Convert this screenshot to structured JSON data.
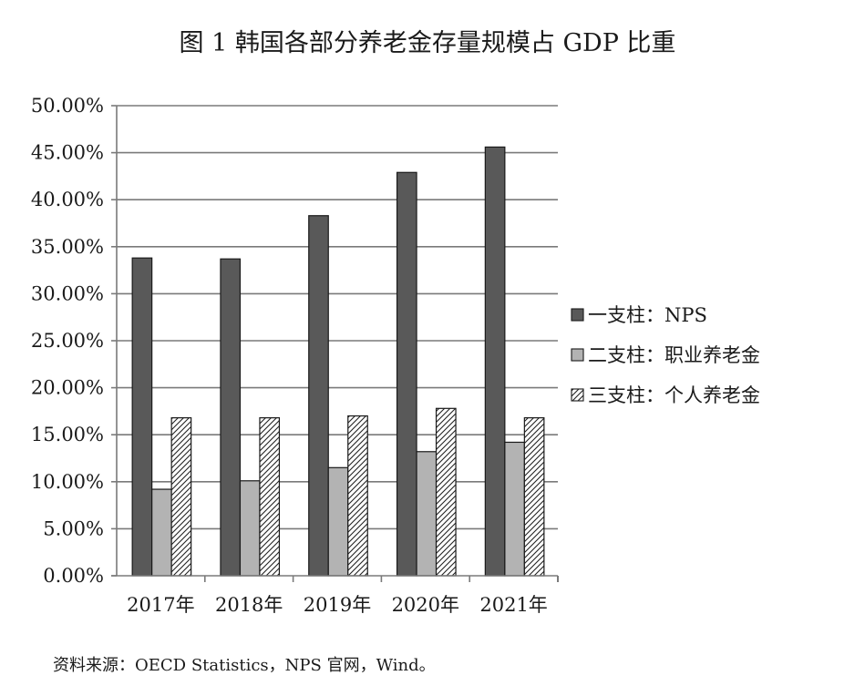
{
  "chart_data": {
    "type": "bar",
    "title": "图 1  韩国各部分养老金存量规模占 GDP 比重",
    "categories": [
      "2017年",
      "2018年",
      "2019年",
      "2020年",
      "2021年"
    ],
    "series": [
      {
        "name": "一支柱：NPS",
        "values": [
          33.8,
          33.7,
          38.3,
          42.9,
          45.6
        ],
        "color": "#595959",
        "pattern": "solid"
      },
      {
        "name": "二支柱：职业养老金",
        "values": [
          9.2,
          10.1,
          11.5,
          13.2,
          14.2
        ],
        "color": "#b3b3b3",
        "pattern": "solid"
      },
      {
        "name": "三支柱：个人养老金",
        "values": [
          16.8,
          16.8,
          17.0,
          17.8,
          16.8
        ],
        "color": "#ffffff",
        "pattern": "hatch"
      }
    ],
    "yticks": [
      "0.00%",
      "5.00%",
      "10.00%",
      "15.00%",
      "20.00%",
      "25.00%",
      "30.00%",
      "35.00%",
      "40.00%",
      "45.00%",
      "50.00%"
    ],
    "ylim": [
      0,
      50
    ],
    "grid": true,
    "legend_position": "right",
    "source": "资料来源：OECD Statistics，NPS 官网，Wind。"
  }
}
